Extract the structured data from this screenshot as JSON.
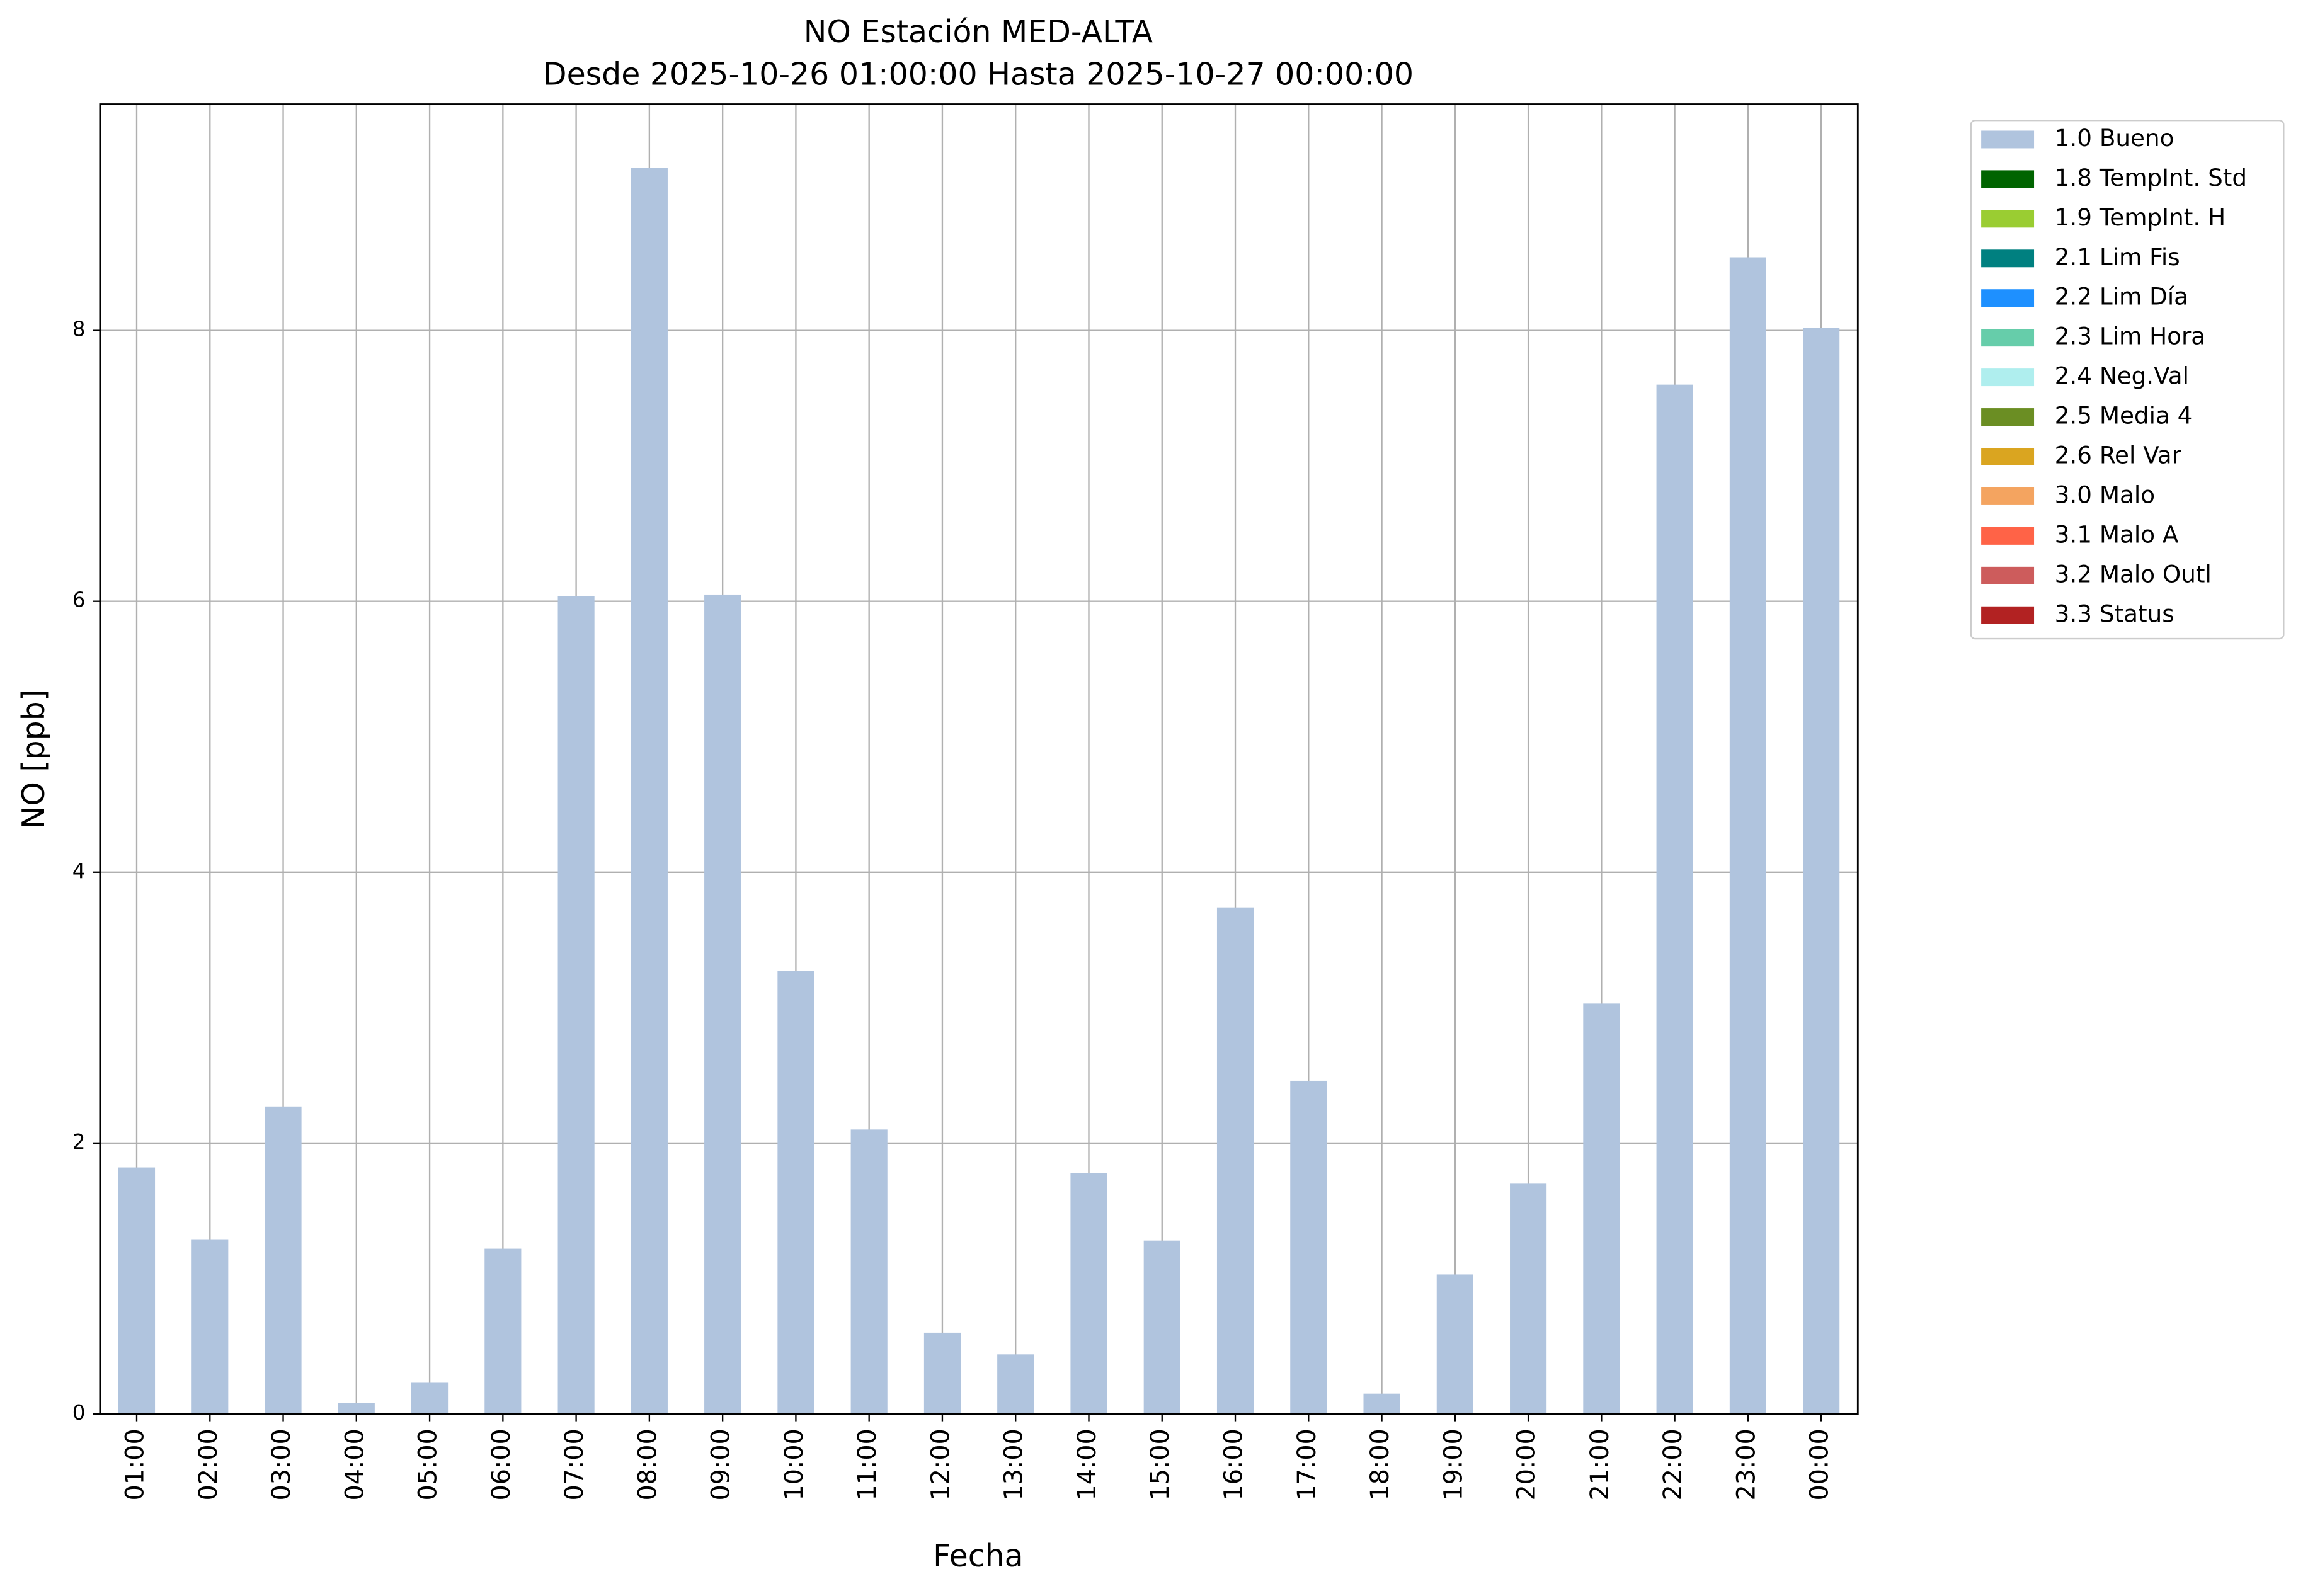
{
  "chart_data": {
    "type": "bar",
    "stacked": true,
    "title": "NO Estación MED-ALTA",
    "subtitle": "Desde 2025-10-26 01:00:00 Hasta 2025-10-27 00:00:00",
    "x_label": "Fecha",
    "y_label": "NO [ppb]",
    "categories": [
      "01:00",
      "02:00",
      "03:00",
      "04:00",
      "05:00",
      "06:00",
      "07:00",
      "08:00",
      "09:00",
      "10:00",
      "11:00",
      "12:00",
      "13:00",
      "14:00",
      "15:00",
      "16:00",
      "17:00",
      "18:00",
      "19:00",
      "20:00",
      "21:00",
      "22:00",
      "23:00",
      "00:00"
    ],
    "series": [
      {
        "name": "1.0 Bueno",
        "color": "#b0c4de",
        "values": [
          1.82,
          1.29,
          2.27,
          0.08,
          0.23,
          1.22,
          6.04,
          9.2,
          6.05,
          3.27,
          2.1,
          0.6,
          0.44,
          1.78,
          1.28,
          3.74,
          2.46,
          0.15,
          1.03,
          1.7,
          3.03,
          7.6,
          8.54,
          8.02
        ]
      },
      {
        "name": "1.8 TempInt. Std",
        "color": "#006400",
        "values": [
          0,
          0,
          0,
          0,
          0,
          0,
          0,
          0,
          0,
          0,
          0,
          0,
          0,
          0,
          0,
          0,
          0,
          0,
          0,
          0,
          0,
          0,
          0,
          0
        ]
      },
      {
        "name": "1.9 TempInt. H",
        "color": "#9acd32",
        "values": [
          0,
          0,
          0,
          0,
          0,
          0,
          0,
          0,
          0,
          0,
          0,
          0,
          0,
          0,
          0,
          0,
          0,
          0,
          0,
          0,
          0,
          0,
          0,
          0
        ]
      },
      {
        "name": "2.1 Lim Fis",
        "color": "#008080",
        "values": [
          0,
          0,
          0,
          0,
          0,
          0,
          0,
          0,
          0,
          0,
          0,
          0,
          0,
          0,
          0,
          0,
          0,
          0,
          0,
          0,
          0,
          0,
          0,
          0
        ]
      },
      {
        "name": "2.2 Lim Día",
        "color": "#1e90ff",
        "values": [
          0,
          0,
          0,
          0,
          0,
          0,
          0,
          0,
          0,
          0,
          0,
          0,
          0,
          0,
          0,
          0,
          0,
          0,
          0,
          0,
          0,
          0,
          0,
          0
        ]
      },
      {
        "name": "2.3 Lim Hora",
        "color": "#66cdaa",
        "values": [
          0,
          0,
          0,
          0,
          0,
          0,
          0,
          0,
          0,
          0,
          0,
          0,
          0,
          0,
          0,
          0,
          0,
          0,
          0,
          0,
          0,
          0,
          0,
          0
        ]
      },
      {
        "name": "2.4 Neg.Val",
        "color": "#afeeee",
        "values": [
          0,
          0,
          0,
          0,
          0,
          0,
          0,
          0,
          0,
          0,
          0,
          0,
          0,
          0,
          0,
          0,
          0,
          0,
          0,
          0,
          0,
          0,
          0,
          0
        ]
      },
      {
        "name": "2.5 Media 4",
        "color": "#6b8e23",
        "values": [
          0,
          0,
          0,
          0,
          0,
          0,
          0,
          0,
          0,
          0,
          0,
          0,
          0,
          0,
          0,
          0,
          0,
          0,
          0,
          0,
          0,
          0,
          0,
          0
        ]
      },
      {
        "name": "2.6 Rel Var",
        "color": "#daa520",
        "values": [
          0,
          0,
          0,
          0,
          0,
          0,
          0,
          0,
          0,
          0,
          0,
          0,
          0,
          0,
          0,
          0,
          0,
          0,
          0,
          0,
          0,
          0,
          0,
          0
        ]
      },
      {
        "name": "3.0 Malo",
        "color": "#f4a460",
        "values": [
          0,
          0,
          0,
          0,
          0,
          0,
          0,
          0,
          0,
          0,
          0,
          0,
          0,
          0,
          0,
          0,
          0,
          0,
          0,
          0,
          0,
          0,
          0,
          0
        ]
      },
      {
        "name": "3.1 Malo A",
        "color": "#ff6347",
        "values": [
          0,
          0,
          0,
          0,
          0,
          0,
          0,
          0,
          0,
          0,
          0,
          0,
          0,
          0,
          0,
          0,
          0,
          0,
          0,
          0,
          0,
          0,
          0,
          0
        ]
      },
      {
        "name": "3.2 Malo Outl",
        "color": "#cd5c5c",
        "values": [
          0,
          0,
          0,
          0,
          0,
          0,
          0,
          0,
          0,
          0,
          0,
          0,
          0,
          0,
          0,
          0,
          0,
          0,
          0,
          0,
          0,
          0,
          0,
          0
        ]
      },
      {
        "name": "3.3 Status",
        "color": "#b22222",
        "values": [
          0,
          0,
          0,
          0,
          0,
          0,
          0,
          0,
          0,
          0,
          0,
          0,
          0,
          0,
          0,
          0,
          0,
          0,
          0,
          0,
          0,
          0,
          0,
          0
        ]
      }
    ],
    "ylim": [
      0,
      9.67
    ],
    "yticks": [
      0,
      2,
      4,
      6,
      8
    ],
    "grid": true,
    "legend": "outside-right"
  }
}
